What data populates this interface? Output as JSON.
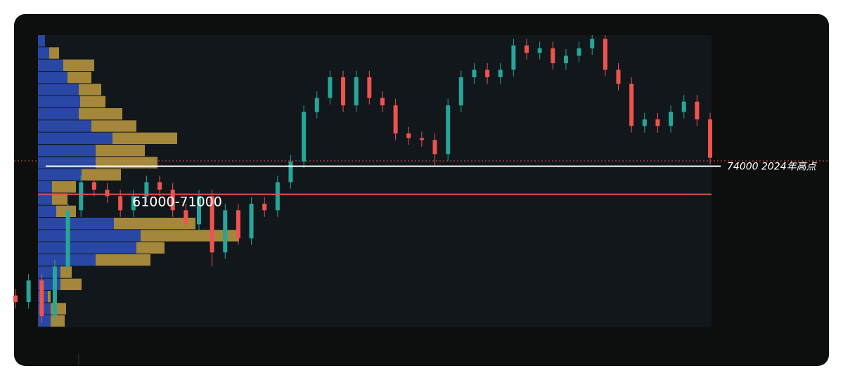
{
  "chart_data": {
    "type": "candlestick",
    "ylim": [
      56800,
      88000
    ],
    "up_color": "#26a69a",
    "down_color": "#ef5350",
    "open": [
      60200,
      59500,
      61800,
      58000,
      63300,
      69300,
      72300,
      71500,
      70800,
      69300,
      70800,
      72300,
      71500,
      69300,
      67800,
      70800,
      64800,
      69300,
      66300,
      70000,
      69300,
      72300,
      74500,
      79800,
      81300,
      83500,
      80500,
      83500,
      81300,
      80500,
      77500,
      77000,
      76800,
      75300,
      80500,
      83500,
      84300,
      83500,
      84300,
      86900,
      86100,
      86600,
      85000,
      85800,
      86600,
      87600,
      84300,
      82800,
      78300,
      79000,
      78300,
      79800,
      80900,
      79000
    ],
    "high": [
      60900,
      62500,
      62500,
      64000,
      70000,
      73000,
      73000,
      72200,
      71500,
      71500,
      73000,
      73000,
      72200,
      70000,
      71500,
      71500,
      70000,
      70000,
      70700,
      70700,
      73000,
      75200,
      80500,
      82000,
      84200,
      84200,
      84200,
      84200,
      82000,
      81200,
      78200,
      77700,
      77500,
      81200,
      84200,
      85000,
      85000,
      85000,
      87600,
      87600,
      87300,
      87300,
      86500,
      87300,
      88000,
      88000,
      85000,
      83500,
      79700,
      79700,
      80500,
      81600,
      81600,
      79700
    ],
    "low": [
      58800,
      58800,
      57300,
      57300,
      62600,
      68600,
      70800,
      70100,
      68600,
      68600,
      70100,
      70800,
      68600,
      67100,
      67100,
      63300,
      64100,
      65600,
      65600,
      68600,
      68600,
      71600,
      73800,
      79100,
      80600,
      79800,
      79800,
      80600,
      79800,
      76800,
      76300,
      76100,
      74100,
      74600,
      79800,
      82800,
      82800,
      82800,
      83600,
      85400,
      85400,
      84300,
      84300,
      85100,
      85900,
      83600,
      82100,
      77600,
      77600,
      77600,
      77600,
      79100,
      78300,
      74200
    ],
    "close": [
      59500,
      61800,
      58000,
      63300,
      69300,
      72300,
      71500,
      70800,
      69300,
      70800,
      72300,
      71500,
      69300,
      67800,
      70800,
      64800,
      69300,
      66300,
      70000,
      69300,
      72300,
      74500,
      79800,
      81300,
      83500,
      80500,
      83500,
      81300,
      80500,
      77500,
      77000,
      76800,
      75300,
      80500,
      83500,
      84300,
      83500,
      84300,
      86900,
      86100,
      86600,
      85000,
      85800,
      86600,
      87600,
      84300,
      82800,
      78300,
      79000,
      78300,
      79800,
      80900,
      79000,
      74900
    ],
    "profile": {
      "bins": [
        56800,
        58100,
        59400,
        60700,
        62000,
        63300,
        64600,
        65900,
        67200,
        68500,
        69800,
        71100,
        72400,
        73700,
        75000,
        76300,
        77600,
        78900,
        80200,
        81500,
        82800,
        84100,
        85400,
        86700,
        88000
      ],
      "xlim": [
        0,
        958
      ],
      "series": [
        {
          "color": "#2f55c8",
          "values": [
            18,
            18,
            14,
            32,
            32,
            82,
            140,
            146,
            108,
            26,
            20,
            20,
            62,
            82,
            82,
            106,
            76,
            58,
            60,
            58,
            42,
            36,
            16,
            10
          ]
        },
        {
          "color": "#c9a442",
          "values": [
            20,
            22,
            4,
            30,
            16,
            78,
            40,
            140,
            116,
            28,
            22,
            34,
            56,
            88,
            70,
            92,
            64,
            62,
            36,
            32,
            34,
            44,
            14,
            0
          ]
        }
      ]
    },
    "levels": [
      {
        "value": 74000,
        "label": "74000 2024年高点",
        "color": "#ffffff"
      },
      {
        "value": 71000,
        "color": "#e0524a"
      }
    ],
    "annotation": "61000-71000"
  }
}
